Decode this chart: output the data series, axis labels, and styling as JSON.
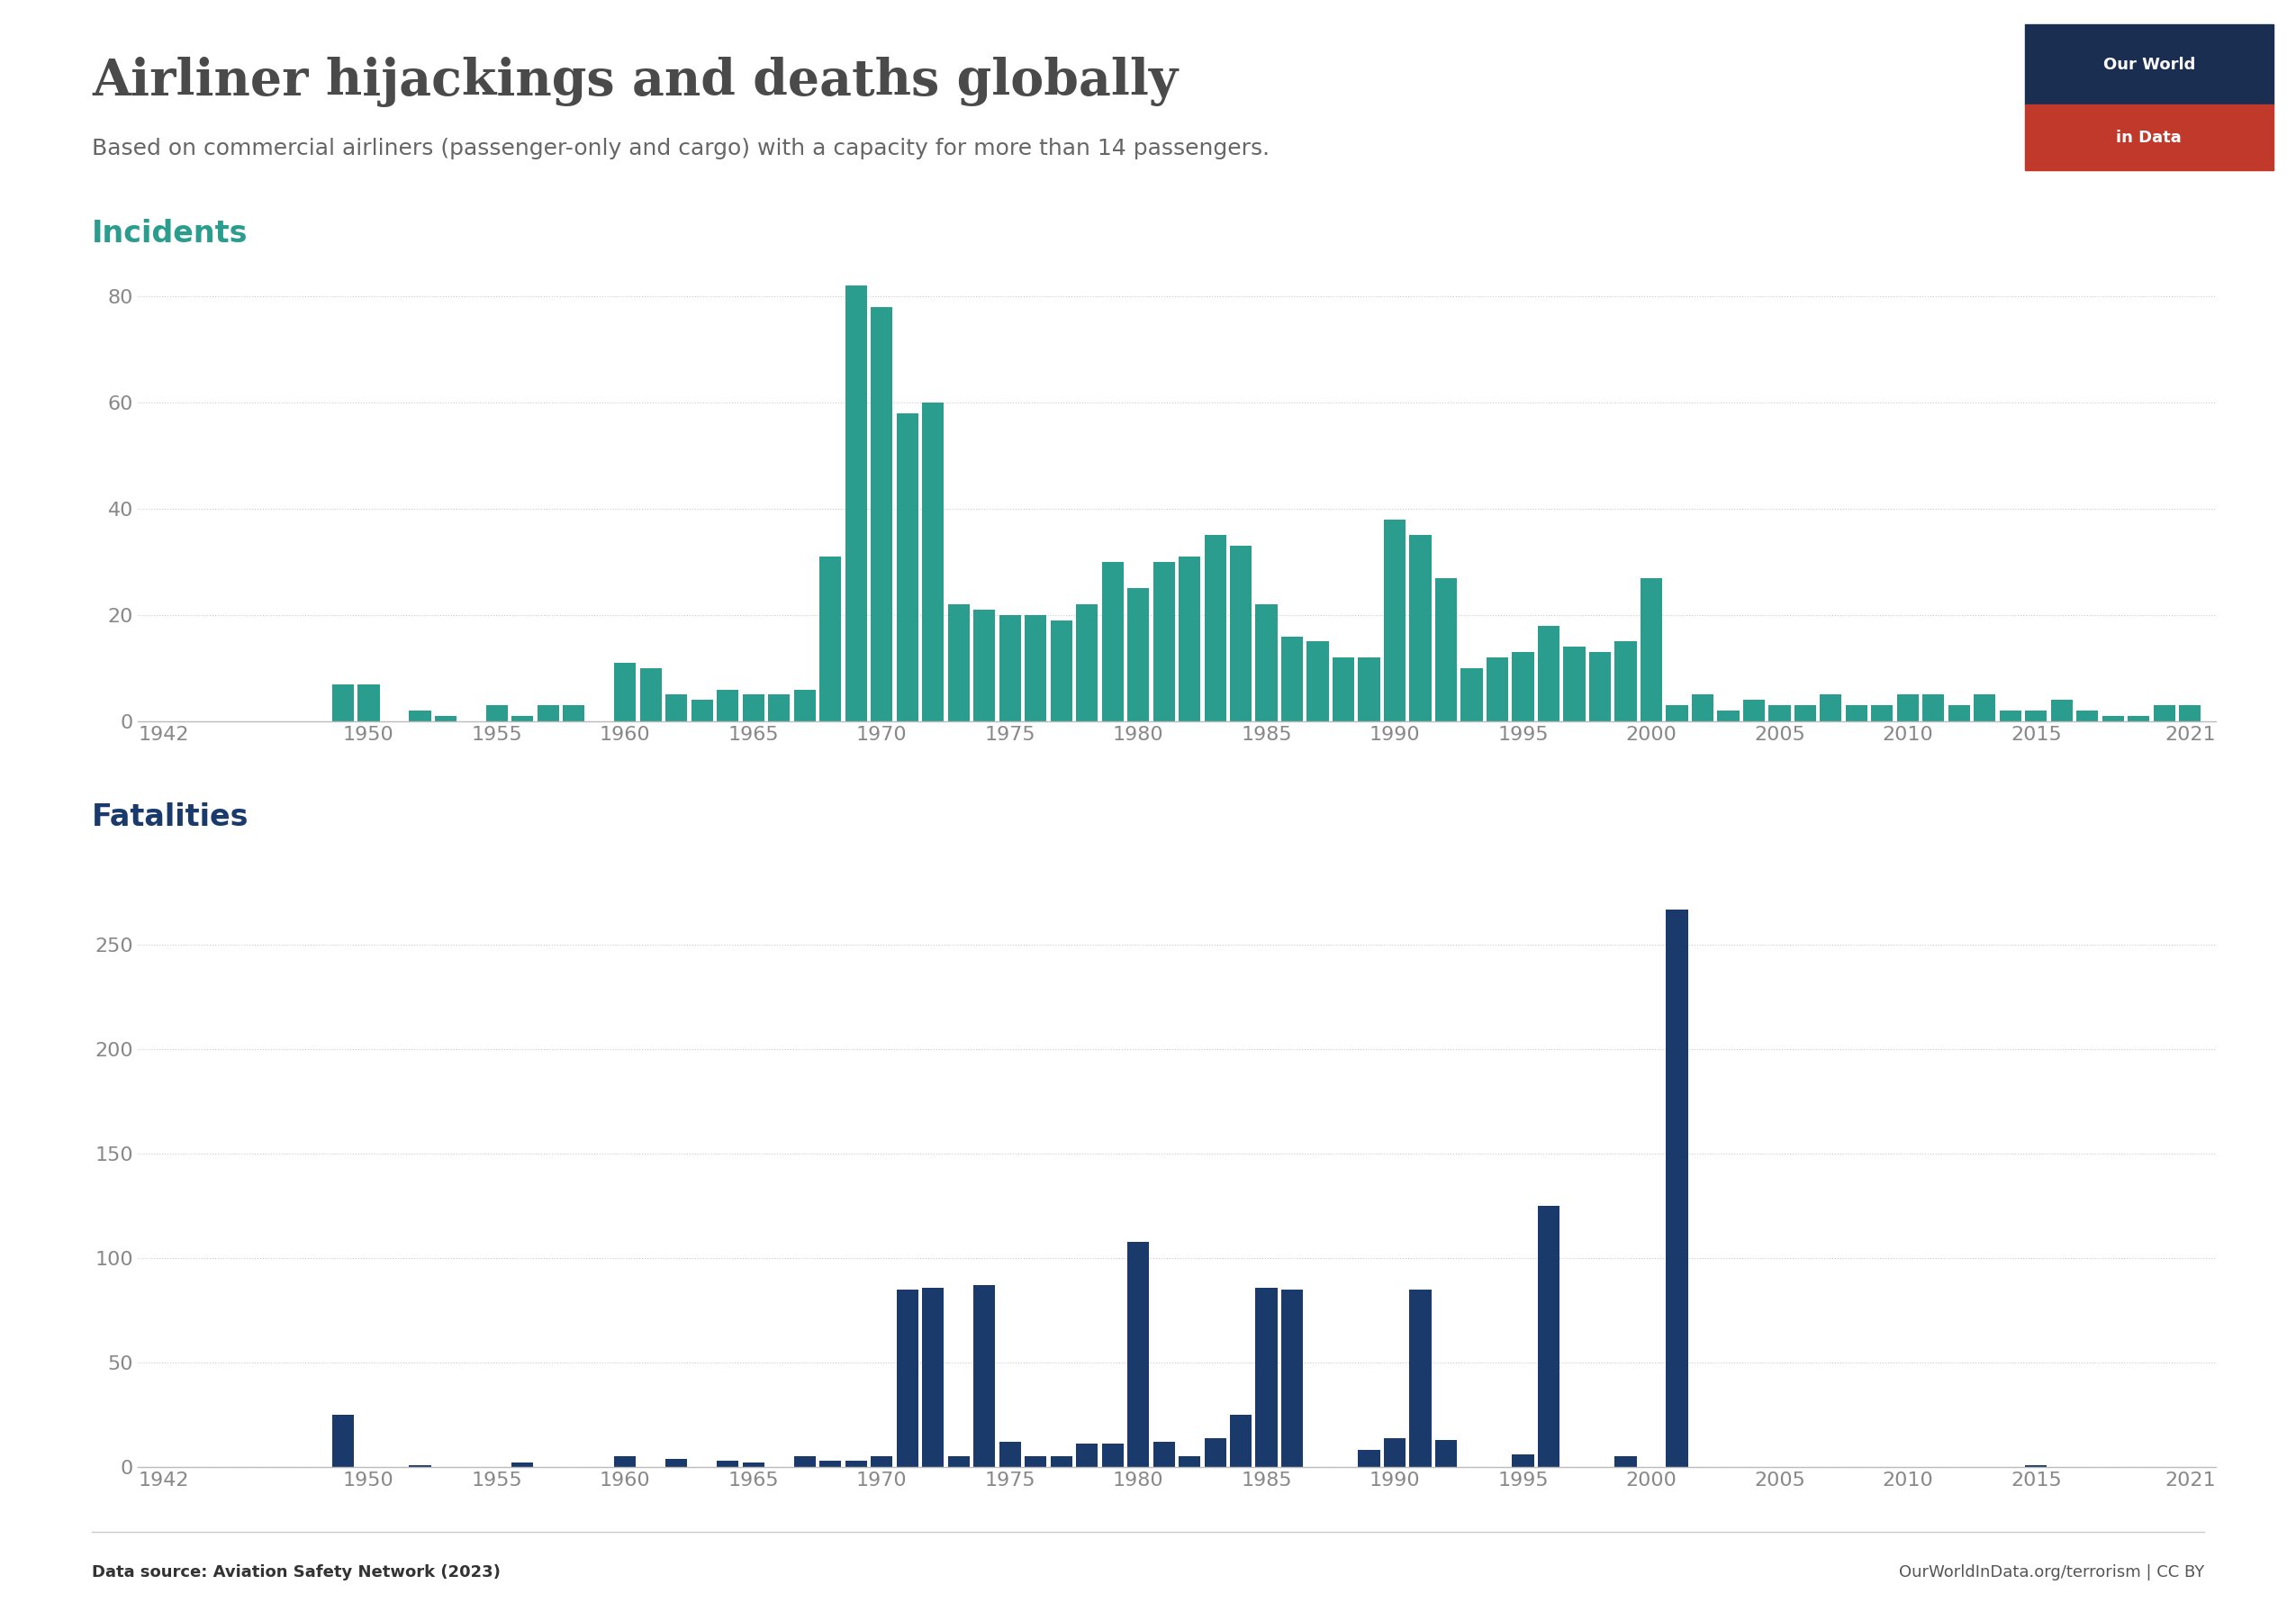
{
  "title": "Airliner hijackings and deaths globally",
  "subtitle": "Based on commercial airliners (passenger-only and cargo) with a capacity for more than 14 passengers.",
  "incidents_label": "Incidents",
  "fatalities_label": "Fatalities",
  "source_text": "Data source: Aviation Safety Network (2023)",
  "credit_text": "OurWorldInData.org/terrorism | CC BY",
  "incidents_color": "#2a9d8f",
  "fatalities_color": "#1a3a6b",
  "background_color": "#ffffff",
  "title_color": "#4a4a4a",
  "subtitle_color": "#666666",
  "incidents_label_color": "#2a9d8f",
  "fatalities_label_color": "#1a3a6b",
  "tick_color": "#888888",
  "grid_color": "#cccccc",
  "spine_color": "#bbbbbb",
  "years": [
    1942,
    1943,
    1944,
    1945,
    1946,
    1947,
    1948,
    1949,
    1950,
    1951,
    1952,
    1953,
    1954,
    1955,
    1956,
    1957,
    1958,
    1959,
    1960,
    1961,
    1962,
    1963,
    1964,
    1965,
    1966,
    1967,
    1968,
    1969,
    1970,
    1971,
    1972,
    1973,
    1974,
    1975,
    1976,
    1977,
    1978,
    1979,
    1980,
    1981,
    1982,
    1983,
    1984,
    1985,
    1986,
    1987,
    1988,
    1989,
    1990,
    1991,
    1992,
    1993,
    1994,
    1995,
    1996,
    1997,
    1998,
    1999,
    2000,
    2001,
    2002,
    2003,
    2004,
    2005,
    2006,
    2007,
    2008,
    2009,
    2010,
    2011,
    2012,
    2013,
    2014,
    2015,
    2016,
    2017,
    2018,
    2019,
    2020,
    2021
  ],
  "incidents": [
    0,
    0,
    0,
    0,
    0,
    0,
    0,
    7,
    7,
    0,
    2,
    1,
    0,
    3,
    1,
    3,
    3,
    0,
    11,
    10,
    5,
    4,
    6,
    5,
    5,
    6,
    31,
    82,
    78,
    58,
    60,
    22,
    21,
    20,
    20,
    19,
    22,
    30,
    25,
    30,
    31,
    35,
    33,
    22,
    16,
    15,
    12,
    12,
    38,
    35,
    27,
    10,
    12,
    13,
    18,
    14,
    13,
    15,
    27,
    3,
    5,
    2,
    4,
    3,
    3,
    5,
    3,
    3,
    5,
    5,
    3,
    5,
    2,
    2,
    4,
    2,
    1,
    1,
    3,
    3
  ],
  "fatalities": [
    0,
    0,
    0,
    0,
    0,
    0,
    0,
    25,
    0,
    0,
    1,
    0,
    0,
    0,
    2,
    0,
    0,
    0,
    5,
    0,
    4,
    0,
    3,
    2,
    0,
    5,
    3,
    3,
    5,
    85,
    86,
    5,
    87,
    12,
    5,
    5,
    11,
    11,
    108,
    12,
    5,
    14,
    25,
    86,
    85,
    0,
    0,
    8,
    14,
    85,
    13,
    0,
    0,
    6,
    125,
    0,
    0,
    5,
    0,
    267,
    0,
    0,
    0,
    0,
    0,
    0,
    0,
    0,
    0,
    0,
    0,
    0,
    0,
    1,
    0,
    0,
    0,
    0,
    0,
    0
  ],
  "incidents_yticks": [
    0,
    20,
    40,
    60,
    80
  ],
  "fatalities_yticks": [
    0,
    50,
    100,
    150,
    200,
    250
  ],
  "xticks": [
    1942,
    1950,
    1955,
    1960,
    1965,
    1970,
    1975,
    1980,
    1985,
    1990,
    1995,
    2000,
    2005,
    2010,
    2015,
    2021
  ],
  "owid_logo_bg": "#c0392b",
  "owid_logo_navy": "#1a2e52",
  "owid_logo_text": "#ffffff",
  "source_fontsize": 13,
  "title_fontsize": 40,
  "subtitle_fontsize": 18,
  "label_fontsize": 24,
  "tick_fontsize": 16
}
